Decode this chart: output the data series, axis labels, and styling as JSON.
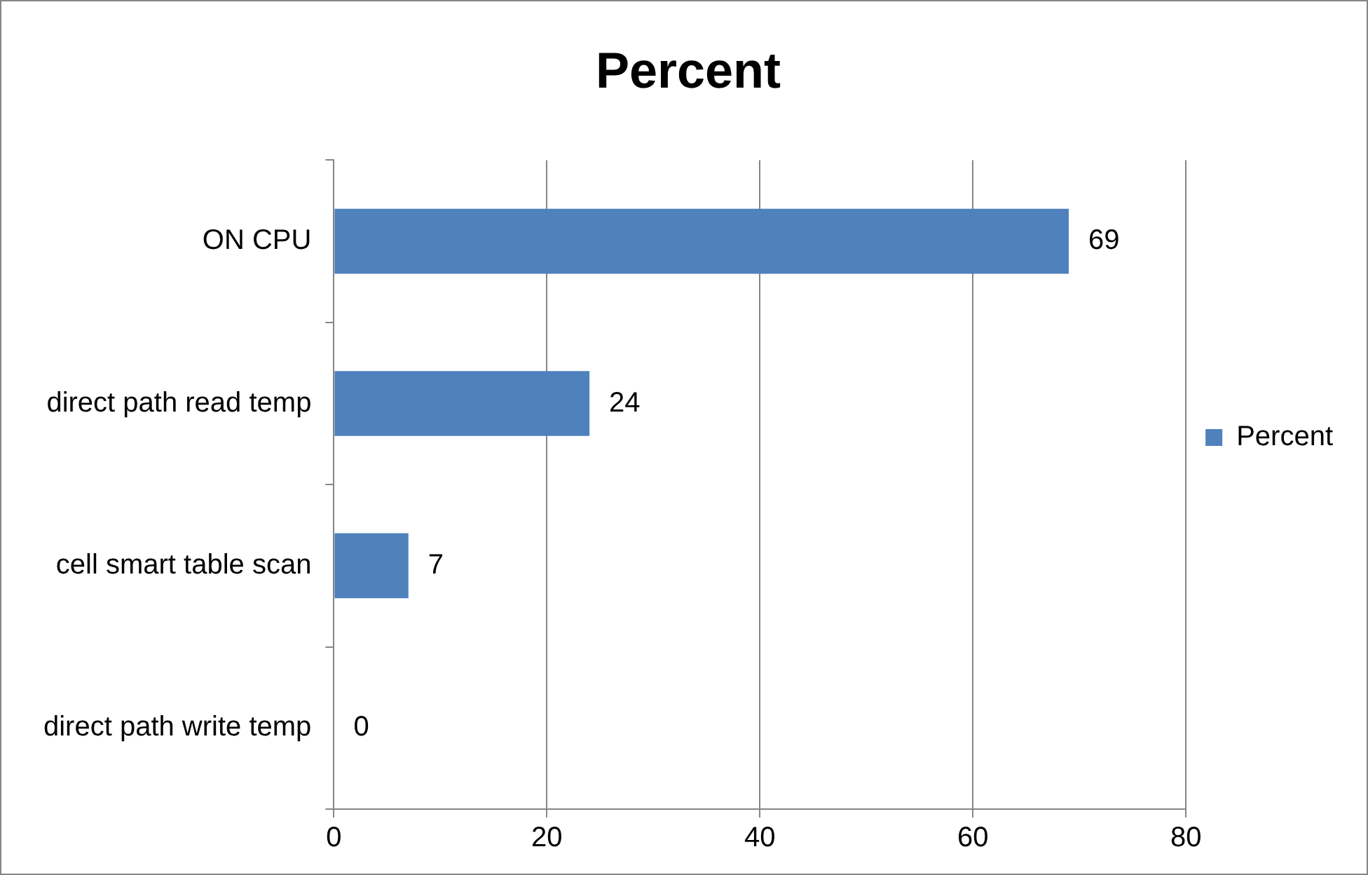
{
  "chart_data": {
    "type": "bar",
    "title": "Percent",
    "orientation": "horizontal",
    "categories": [
      "ON CPU",
      "direct path read temp",
      "cell smart table scan",
      "direct path write temp"
    ],
    "series": [
      {
        "name": "Percent",
        "color": "#4f81bd",
        "values": [
          69,
          24,
          7,
          0
        ]
      }
    ],
    "xlim": [
      0,
      80
    ],
    "xticks": [
      0,
      20,
      40,
      60,
      80
    ],
    "grid": "x",
    "legend": "right",
    "data_labels": true
  }
}
